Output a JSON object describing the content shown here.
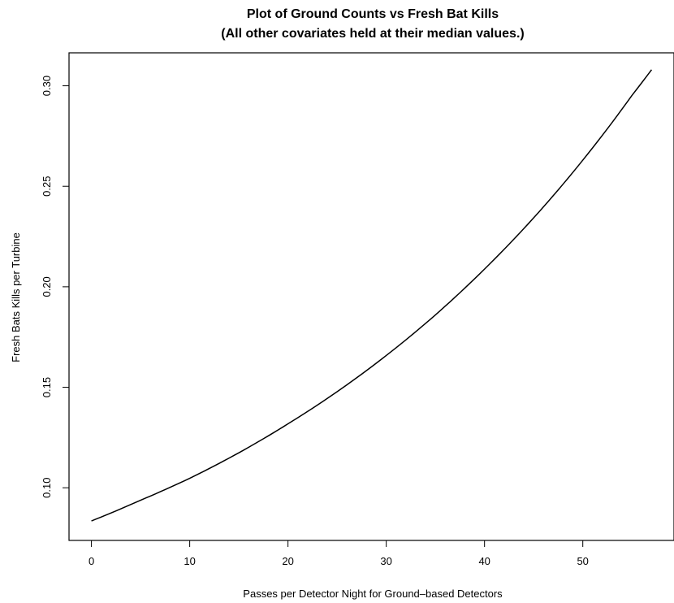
{
  "chart_data": {
    "type": "line",
    "title": "Plot of Ground Counts vs Fresh Bat Kills",
    "subtitle": "(All other covariates held at their median values.)",
    "xlabel": "Passes per Detector Night for Ground–based Detectors",
    "ylabel": "Fresh Bats Kills per Turbine",
    "xlim": [
      -2.28,
      59.28
    ],
    "ylim": [
      0.0738,
      0.3164
    ],
    "x_ticks": [
      0,
      10,
      20,
      30,
      40,
      50
    ],
    "x_tick_labels": [
      "0",
      "10",
      "20",
      "30",
      "40",
      "50"
    ],
    "y_ticks": [
      0.1,
      0.15,
      0.2,
      0.25,
      0.3
    ],
    "y_tick_labels": [
      "0.10",
      "0.15",
      "0.20",
      "0.25",
      "0.30"
    ],
    "grid": false,
    "legend": "none",
    "line_color": "#000000",
    "series": [
      {
        "x": [
          0,
          5,
          10,
          15,
          20,
          25,
          30,
          35,
          40,
          45,
          50,
          55,
          57
        ],
        "values": [
          0.0835,
          0.0938,
          0.1047,
          0.1174,
          0.1318,
          0.1478,
          0.1658,
          0.186,
          0.2088,
          0.2343,
          0.263,
          0.2952,
          0.308
        ]
      }
    ]
  }
}
